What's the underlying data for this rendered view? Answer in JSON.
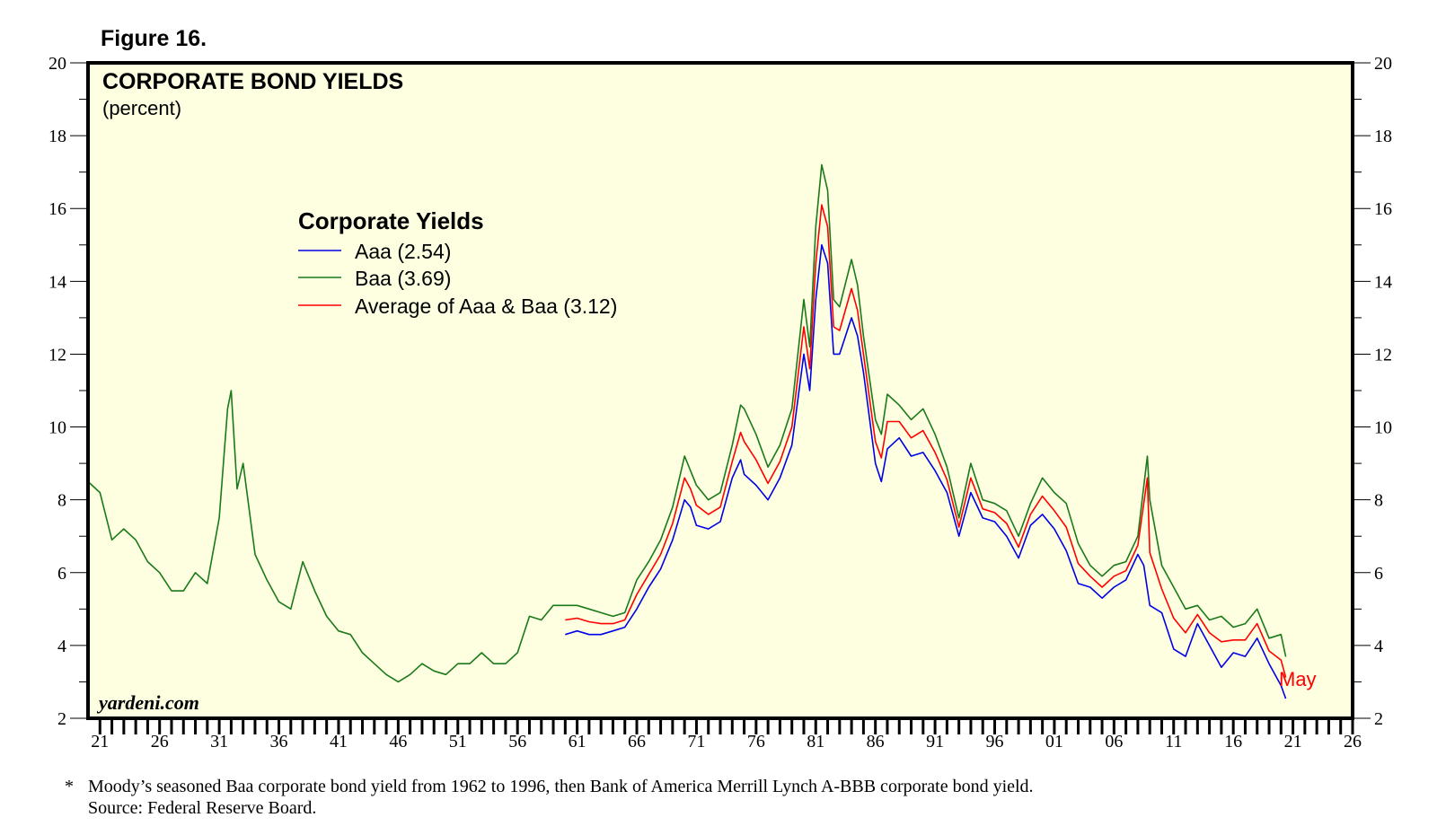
{
  "figure_label": "Figure 16.",
  "footnote": {
    "marker": "*",
    "line1": "Moody’s seasoned Baa corporate bond yield from 1962 to 1996, then Bank of America Merrill Lynch A-BBB corporate bond yield.",
    "line2": "Source: Federal Reserve Board."
  },
  "watermark": "yardeni.com",
  "colors": {
    "plot_background": "#fefee1",
    "aaa": "#0000e6",
    "baa": "#1a7a1a",
    "average": "#ff0000",
    "frame": "#000000"
  },
  "chart_data": {
    "type": "line",
    "title": "CORPORATE BOND YIELDS",
    "subtitle": "(percent)",
    "legend_title": "Corporate Yields",
    "legend_position": "upper-left",
    "end_annotation": "May",
    "ylim": [
      2,
      20
    ],
    "y_ticks": [
      2,
      4,
      6,
      8,
      10,
      12,
      14,
      16,
      18,
      20
    ],
    "x_range": [
      1920,
      2026
    ],
    "x_ticks": [
      {
        "year": 1921,
        "label": "21"
      },
      {
        "year": 1926,
        "label": "26"
      },
      {
        "year": 1931,
        "label": "31"
      },
      {
        "year": 1936,
        "label": "36"
      },
      {
        "year": 1941,
        "label": "41"
      },
      {
        "year": 1946,
        "label": "46"
      },
      {
        "year": 1951,
        "label": "51"
      },
      {
        "year": 1956,
        "label": "56"
      },
      {
        "year": 1961,
        "label": "61"
      },
      {
        "year": 1966,
        "label": "66"
      },
      {
        "year": 1971,
        "label": "71"
      },
      {
        "year": 1976,
        "label": "76"
      },
      {
        "year": 1981,
        "label": "81"
      },
      {
        "year": 1986,
        "label": "86"
      },
      {
        "year": 1991,
        "label": "91"
      },
      {
        "year": 1996,
        "label": "96"
      },
      {
        "year": 2001,
        "label": "01"
      },
      {
        "year": 2006,
        "label": "06"
      },
      {
        "year": 2011,
        "label": "11"
      },
      {
        "year": 2016,
        "label": "16"
      },
      {
        "year": 2021,
        "label": "21"
      },
      {
        "year": 2026,
        "label": "26"
      }
    ],
    "series": [
      {
        "name": "Aaa (2.54)",
        "color": "#0000e6",
        "points": [
          [
            1960.0,
            4.3
          ],
          [
            1961.0,
            4.4
          ],
          [
            1962.0,
            4.3
          ],
          [
            1963.0,
            4.3
          ],
          [
            1964.0,
            4.4
          ],
          [
            1965.0,
            4.5
          ],
          [
            1966.0,
            5.0
          ],
          [
            1967.0,
            5.6
          ],
          [
            1968.0,
            6.1
          ],
          [
            1969.0,
            6.9
          ],
          [
            1970.0,
            8.0
          ],
          [
            1970.5,
            7.8
          ],
          [
            1971.0,
            7.3
          ],
          [
            1972.0,
            7.2
          ],
          [
            1973.0,
            7.4
          ],
          [
            1974.0,
            8.6
          ],
          [
            1974.7,
            9.1
          ],
          [
            1975.0,
            8.7
          ],
          [
            1976.0,
            8.4
          ],
          [
            1977.0,
            8.0
          ],
          [
            1978.0,
            8.6
          ],
          [
            1979.0,
            9.5
          ],
          [
            1980.0,
            12.0
          ],
          [
            1980.5,
            11.0
          ],
          [
            1981.0,
            13.5
          ],
          [
            1981.5,
            15.0
          ],
          [
            1982.0,
            14.5
          ],
          [
            1982.5,
            12.0
          ],
          [
            1983.0,
            12.0
          ],
          [
            1984.0,
            13.0
          ],
          [
            1984.5,
            12.5
          ],
          [
            1985.0,
            11.5
          ],
          [
            1986.0,
            9.0
          ],
          [
            1986.5,
            8.5
          ],
          [
            1987.0,
            9.4
          ],
          [
            1988.0,
            9.7
          ],
          [
            1989.0,
            9.2
          ],
          [
            1990.0,
            9.3
          ],
          [
            1991.0,
            8.8
          ],
          [
            1992.0,
            8.2
          ],
          [
            1993.0,
            7.0
          ],
          [
            1994.0,
            8.2
          ],
          [
            1995.0,
            7.5
          ],
          [
            1996.0,
            7.4
          ],
          [
            1997.0,
            7.0
          ],
          [
            1998.0,
            6.4
          ],
          [
            1999.0,
            7.3
          ],
          [
            2000.0,
            7.6
          ],
          [
            2001.0,
            7.2
          ],
          [
            2002.0,
            6.6
          ],
          [
            2003.0,
            5.7
          ],
          [
            2004.0,
            5.6
          ],
          [
            2005.0,
            5.3
          ],
          [
            2006.0,
            5.6
          ],
          [
            2007.0,
            5.8
          ],
          [
            2008.0,
            6.5
          ],
          [
            2008.5,
            6.2
          ],
          [
            2009.0,
            5.1
          ],
          [
            2010.0,
            4.9
          ],
          [
            2011.0,
            3.9
          ],
          [
            2012.0,
            3.7
          ],
          [
            2013.0,
            4.6
          ],
          [
            2014.0,
            4.0
          ],
          [
            2015.0,
            3.4
          ],
          [
            2016.0,
            3.8
          ],
          [
            2017.0,
            3.7
          ],
          [
            2018.0,
            4.2
          ],
          [
            2019.0,
            3.5
          ],
          [
            2020.0,
            2.9
          ],
          [
            2020.4,
            2.54
          ]
        ]
      },
      {
        "name": "Baa (3.69)",
        "color": "#1a7a1a",
        "points": [
          [
            1920.0,
            8.5
          ],
          [
            1921.0,
            8.2
          ],
          [
            1922.0,
            6.9
          ],
          [
            1923.0,
            7.2
          ],
          [
            1924.0,
            6.9
          ],
          [
            1925.0,
            6.3
          ],
          [
            1926.0,
            6.0
          ],
          [
            1927.0,
            5.5
          ],
          [
            1928.0,
            5.5
          ],
          [
            1929.0,
            6.0
          ],
          [
            1930.0,
            5.7
          ],
          [
            1931.0,
            7.5
          ],
          [
            1931.7,
            10.5
          ],
          [
            1932.0,
            11.0
          ],
          [
            1932.5,
            8.3
          ],
          [
            1933.0,
            9.0
          ],
          [
            1934.0,
            6.5
          ],
          [
            1935.0,
            5.8
          ],
          [
            1936.0,
            5.2
          ],
          [
            1937.0,
            5.0
          ],
          [
            1938.0,
            6.3
          ],
          [
            1939.0,
            5.5
          ],
          [
            1940.0,
            4.8
          ],
          [
            1941.0,
            4.4
          ],
          [
            1942.0,
            4.3
          ],
          [
            1943.0,
            3.8
          ],
          [
            1944.0,
            3.5
          ],
          [
            1945.0,
            3.2
          ],
          [
            1946.0,
            3.0
          ],
          [
            1947.0,
            3.2
          ],
          [
            1948.0,
            3.5
          ],
          [
            1949.0,
            3.3
          ],
          [
            1950.0,
            3.2
          ],
          [
            1951.0,
            3.5
          ],
          [
            1952.0,
            3.5
          ],
          [
            1953.0,
            3.8
          ],
          [
            1954.0,
            3.5
          ],
          [
            1955.0,
            3.5
          ],
          [
            1956.0,
            3.8
          ],
          [
            1957.0,
            4.8
          ],
          [
            1958.0,
            4.7
          ],
          [
            1959.0,
            5.1
          ],
          [
            1960.0,
            5.1
          ],
          [
            1961.0,
            5.1
          ],
          [
            1962.0,
            5.0
          ],
          [
            1963.0,
            4.9
          ],
          [
            1964.0,
            4.8
          ],
          [
            1965.0,
            4.9
          ],
          [
            1966.0,
            5.8
          ],
          [
            1967.0,
            6.3
          ],
          [
            1968.0,
            6.9
          ],
          [
            1969.0,
            7.8
          ],
          [
            1970.0,
            9.2
          ],
          [
            1970.5,
            8.8
          ],
          [
            1971.0,
            8.4
          ],
          [
            1972.0,
            8.0
          ],
          [
            1973.0,
            8.2
          ],
          [
            1974.0,
            9.5
          ],
          [
            1974.7,
            10.6
          ],
          [
            1975.0,
            10.5
          ],
          [
            1976.0,
            9.8
          ],
          [
            1977.0,
            8.9
          ],
          [
            1978.0,
            9.5
          ],
          [
            1979.0,
            10.5
          ],
          [
            1980.0,
            13.5
          ],
          [
            1980.5,
            12.2
          ],
          [
            1981.0,
            15.5
          ],
          [
            1981.5,
            17.2
          ],
          [
            1982.0,
            16.5
          ],
          [
            1982.5,
            13.5
          ],
          [
            1983.0,
            13.3
          ],
          [
            1984.0,
            14.6
          ],
          [
            1984.5,
            13.9
          ],
          [
            1985.0,
            12.5
          ],
          [
            1986.0,
            10.2
          ],
          [
            1986.5,
            9.8
          ],
          [
            1987.0,
            10.9
          ],
          [
            1988.0,
            10.6
          ],
          [
            1989.0,
            10.2
          ],
          [
            1990.0,
            10.5
          ],
          [
            1991.0,
            9.8
          ],
          [
            1992.0,
            8.9
          ],
          [
            1993.0,
            7.5
          ],
          [
            1994.0,
            9.0
          ],
          [
            1995.0,
            8.0
          ],
          [
            1996.0,
            7.9
          ],
          [
            1997.0,
            7.7
          ],
          [
            1998.0,
            7.0
          ],
          [
            1999.0,
            7.9
          ],
          [
            2000.0,
            8.6
          ],
          [
            2001.0,
            8.2
          ],
          [
            2002.0,
            7.9
          ],
          [
            2003.0,
            6.8
          ],
          [
            2004.0,
            6.2
          ],
          [
            2005.0,
            5.9
          ],
          [
            2006.0,
            6.2
          ],
          [
            2007.0,
            6.3
          ],
          [
            2008.0,
            7.0
          ],
          [
            2008.8,
            9.2
          ],
          [
            2009.0,
            8.0
          ],
          [
            2010.0,
            6.2
          ],
          [
            2011.0,
            5.6
          ],
          [
            2012.0,
            5.0
          ],
          [
            2013.0,
            5.1
          ],
          [
            2014.0,
            4.7
          ],
          [
            2015.0,
            4.8
          ],
          [
            2016.0,
            4.5
          ],
          [
            2017.0,
            4.6
          ],
          [
            2018.0,
            5.0
          ],
          [
            2019.0,
            4.2
          ],
          [
            2020.0,
            4.3
          ],
          [
            2020.4,
            3.69
          ]
        ]
      },
      {
        "name": "Average of Aaa & Baa (3.12)",
        "color": "#ff0000",
        "points": [
          [
            1960.0,
            4.7
          ],
          [
            1961.0,
            4.75
          ],
          [
            1962.0,
            4.65
          ],
          [
            1963.0,
            4.6
          ],
          [
            1964.0,
            4.6
          ],
          [
            1965.0,
            4.7
          ],
          [
            1966.0,
            5.4
          ],
          [
            1967.0,
            5.95
          ],
          [
            1968.0,
            6.5
          ],
          [
            1969.0,
            7.35
          ],
          [
            1970.0,
            8.6
          ],
          [
            1970.5,
            8.3
          ],
          [
            1971.0,
            7.85
          ],
          [
            1972.0,
            7.6
          ],
          [
            1973.0,
            7.8
          ],
          [
            1974.0,
            9.05
          ],
          [
            1974.7,
            9.85
          ],
          [
            1975.0,
            9.6
          ],
          [
            1976.0,
            9.1
          ],
          [
            1977.0,
            8.45
          ],
          [
            1978.0,
            9.05
          ],
          [
            1979.0,
            10.0
          ],
          [
            1980.0,
            12.75
          ],
          [
            1980.5,
            11.6
          ],
          [
            1981.0,
            14.5
          ],
          [
            1981.5,
            16.1
          ],
          [
            1982.0,
            15.5
          ],
          [
            1982.5,
            12.75
          ],
          [
            1983.0,
            12.65
          ],
          [
            1984.0,
            13.8
          ],
          [
            1984.5,
            13.2
          ],
          [
            1985.0,
            12.0
          ],
          [
            1986.0,
            9.6
          ],
          [
            1986.5,
            9.15
          ],
          [
            1987.0,
            10.15
          ],
          [
            1988.0,
            10.15
          ],
          [
            1989.0,
            9.7
          ],
          [
            1990.0,
            9.9
          ],
          [
            1991.0,
            9.3
          ],
          [
            1992.0,
            8.55
          ],
          [
            1993.0,
            7.25
          ],
          [
            1994.0,
            8.6
          ],
          [
            1995.0,
            7.75
          ],
          [
            1996.0,
            7.65
          ],
          [
            1997.0,
            7.35
          ],
          [
            1998.0,
            6.7
          ],
          [
            1999.0,
            7.6
          ],
          [
            2000.0,
            8.1
          ],
          [
            2001.0,
            7.7
          ],
          [
            2002.0,
            7.25
          ],
          [
            2003.0,
            6.25
          ],
          [
            2004.0,
            5.9
          ],
          [
            2005.0,
            5.6
          ],
          [
            2006.0,
            5.9
          ],
          [
            2007.0,
            6.05
          ],
          [
            2008.0,
            6.75
          ],
          [
            2008.8,
            8.6
          ],
          [
            2009.0,
            6.55
          ],
          [
            2010.0,
            5.55
          ],
          [
            2011.0,
            4.75
          ],
          [
            2012.0,
            4.35
          ],
          [
            2013.0,
            4.85
          ],
          [
            2014.0,
            4.35
          ],
          [
            2015.0,
            4.1
          ],
          [
            2016.0,
            4.15
          ],
          [
            2017.0,
            4.15
          ],
          [
            2018.0,
            4.6
          ],
          [
            2019.0,
            3.85
          ],
          [
            2020.0,
            3.6
          ],
          [
            2020.4,
            3.12
          ]
        ]
      }
    ],
    "legend": [
      {
        "label": "Aaa (2.54)",
        "color": "#0000e6"
      },
      {
        "label": "Baa (3.69)",
        "color": "#1a7a1a"
      },
      {
        "label": "Average of Aaa & Baa (3.12)",
        "color": "#ff0000"
      }
    ]
  }
}
